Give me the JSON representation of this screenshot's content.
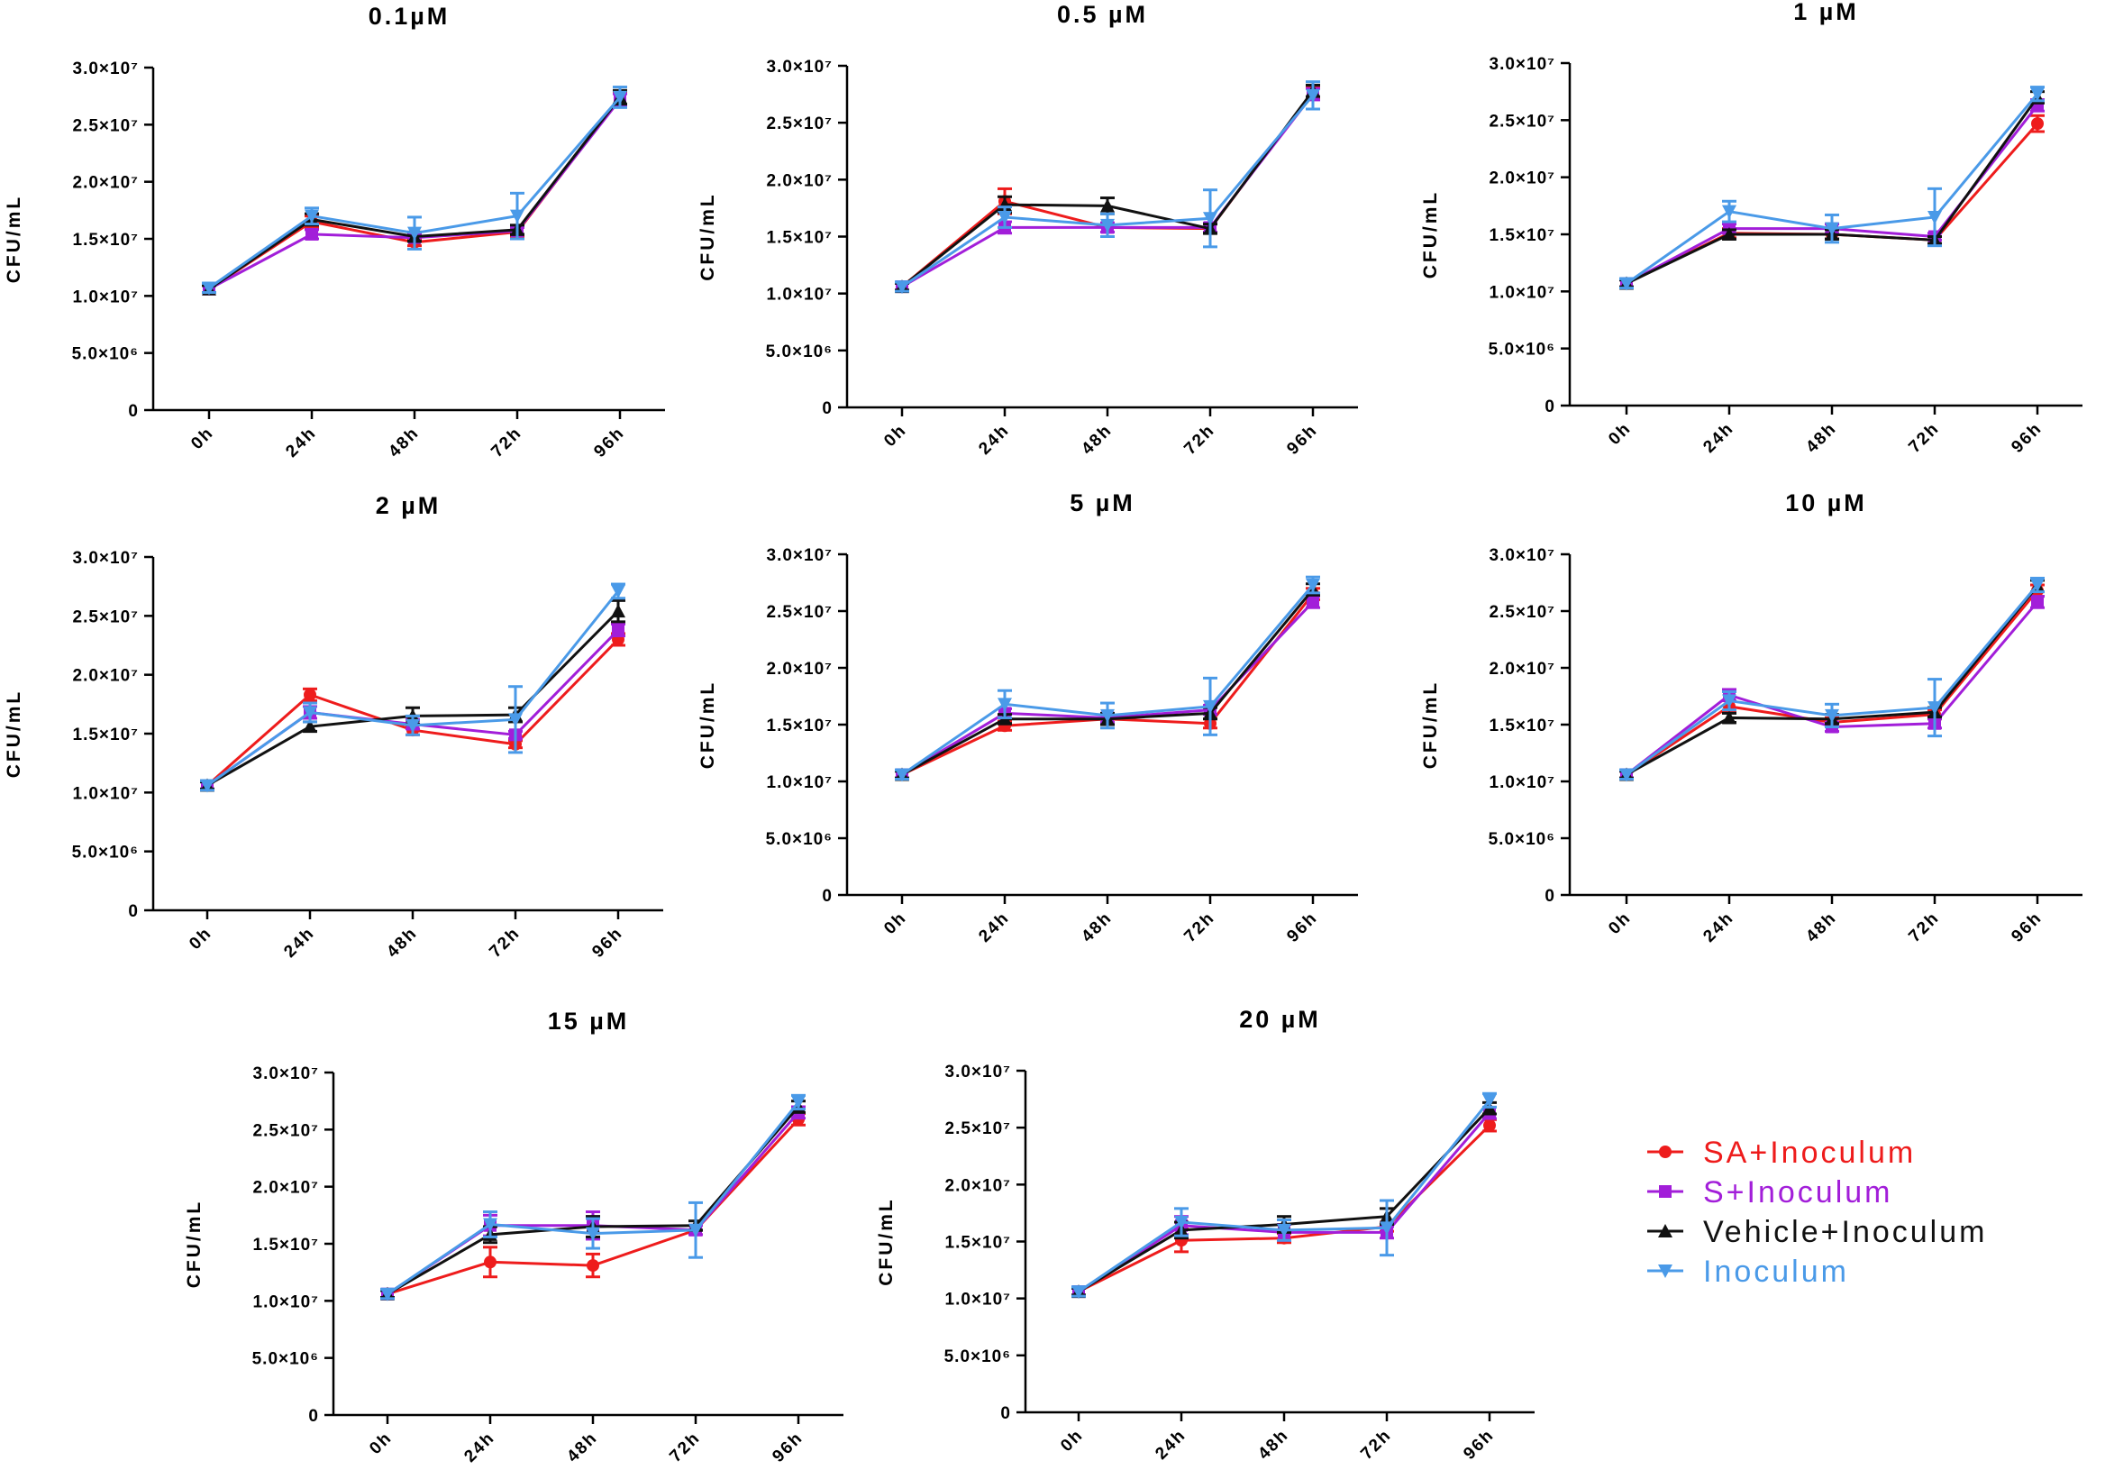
{
  "figure": {
    "legend": [
      {
        "label": "SA+Inoculum",
        "color": "#ee1c1c",
        "marker": "circle"
      },
      {
        "label": "S+Inoculum",
        "color": "#a21ed9",
        "marker": "square"
      },
      {
        "label": "Vehicle+Inoculum",
        "color": "#111111",
        "marker": "triangle-up"
      },
      {
        "label": "Inoculum",
        "color": "#4a9ae8",
        "marker": "triangle-down"
      }
    ]
  },
  "chart_data": [
    {
      "type": "line",
      "title": "0.1µM",
      "xlabel": "",
      "ylabel": "CFU/mL",
      "categories": [
        "0h",
        "24h",
        "48h",
        "72h",
        "96h"
      ],
      "ylim": [
        0,
        30000000
      ],
      "yticks": [
        {
          "value": 0,
          "label": "0"
        },
        {
          "value": 5000000,
          "label": "5.0×10⁶"
        },
        {
          "value": 10000000,
          "label": "1.0×10⁷"
        },
        {
          "value": 15000000,
          "label": "1.5×10⁷"
        },
        {
          "value": 20000000,
          "label": "2.0×10⁷"
        },
        {
          "value": 25000000,
          "label": "2.5×10⁷"
        },
        {
          "value": 30000000,
          "label": "3.0×10⁷"
        }
      ],
      "series": [
        {
          "name": "SA+Inoculum",
          "values": [
            10600000,
            16500000,
            14700000,
            15600000,
            27300000
          ],
          "errors": [
            300000,
            500000,
            300000,
            400000,
            600000
          ]
        },
        {
          "name": "S+Inoculum",
          "values": [
            10600000,
            15400000,
            15100000,
            15700000,
            27200000
          ],
          "errors": [
            300000,
            400000,
            300000,
            300000,
            500000
          ]
        },
        {
          "name": "Vehicle+Inoculum",
          "values": [
            10600000,
            16700000,
            15200000,
            15800000,
            27400000
          ],
          "errors": [
            300000,
            500000,
            400000,
            400000,
            600000
          ]
        },
        {
          "name": "Inoculum",
          "values": [
            10700000,
            17000000,
            15500000,
            17000000,
            27400000
          ],
          "errors": [
            400000,
            700000,
            1400000,
            2000000,
            900000
          ]
        }
      ]
    },
    {
      "type": "line",
      "title": "0.5 µM",
      "xlabel": "",
      "ylabel": "CFU/mL",
      "categories": [
        "0h",
        "24h",
        "48h",
        "72h",
        "96h"
      ],
      "ylim": [
        0,
        30000000
      ],
      "yticks": [
        {
          "value": 0,
          "label": "0"
        },
        {
          "value": 5000000,
          "label": "5.0×10⁶"
        },
        {
          "value": 10000000,
          "label": "1.0×10⁷"
        },
        {
          "value": 15000000,
          "label": "1.5×10⁷"
        },
        {
          "value": 20000000,
          "label": "2.0×10⁷"
        },
        {
          "value": 25000000,
          "label": "2.5×10⁷"
        },
        {
          "value": 30000000,
          "label": "3.0×10⁷"
        }
      ],
      "series": [
        {
          "name": "SA+Inoculum",
          "values": [
            10600000,
            18100000,
            15800000,
            15700000,
            27700000
          ],
          "errors": [
            300000,
            1100000,
            400000,
            400000,
            500000
          ]
        },
        {
          "name": "S+Inoculum",
          "values": [
            10600000,
            15800000,
            15800000,
            15800000,
            27500000
          ],
          "errors": [
            300000,
            500000,
            400000,
            400000,
            500000
          ]
        },
        {
          "name": "Vehicle+Inoculum",
          "values": [
            10600000,
            17800000,
            17700000,
            15700000,
            27800000
          ],
          "errors": [
            300000,
            700000,
            700000,
            400000,
            500000
          ]
        },
        {
          "name": "Inoculum",
          "values": [
            10600000,
            16700000,
            16000000,
            16600000,
            27400000
          ],
          "errors": [
            400000,
            900000,
            1000000,
            2500000,
            1200000
          ]
        }
      ]
    },
    {
      "type": "line",
      "title": "1 µM",
      "xlabel": "",
      "ylabel": "CFU/mL",
      "categories": [
        "0h",
        "24h",
        "48h",
        "72h",
        "96h"
      ],
      "ylim": [
        0,
        30000000
      ],
      "yticks": [
        {
          "value": 0,
          "label": "0"
        },
        {
          "value": 5000000,
          "label": "5.0×10⁶"
        },
        {
          "value": 10000000,
          "label": "1.0×10⁷"
        },
        {
          "value": 15000000,
          "label": "1.5×10⁷"
        },
        {
          "value": 20000000,
          "label": "2.0×10⁷"
        },
        {
          "value": 25000000,
          "label": "2.5×10⁷"
        },
        {
          "value": 30000000,
          "label": "3.0×10⁷"
        }
      ],
      "series": [
        {
          "name": "SA+Inoculum",
          "values": [
            10700000,
            15100000,
            15000000,
            14500000,
            24700000
          ],
          "errors": [
            300000,
            400000,
            400000,
            300000,
            700000
          ]
        },
        {
          "name": "S+Inoculum",
          "values": [
            10700000,
            15500000,
            15500000,
            14800000,
            26300000
          ],
          "errors": [
            300000,
            400000,
            400000,
            300000,
            500000
          ]
        },
        {
          "name": "Vehicle+Inoculum",
          "values": [
            10700000,
            15000000,
            15000000,
            14500000,
            27000000
          ],
          "errors": [
            300000,
            400000,
            400000,
            300000,
            500000
          ]
        },
        {
          "name": "Inoculum",
          "values": [
            10700000,
            17000000,
            15500000,
            16500000,
            27300000
          ],
          "errors": [
            400000,
            900000,
            1200000,
            2500000,
            600000
          ]
        }
      ]
    },
    {
      "type": "line",
      "title": "2 µM",
      "xlabel": "",
      "ylabel": "CFU/mL",
      "categories": [
        "0h",
        "24h",
        "48h",
        "72h",
        "96h"
      ],
      "ylim": [
        0,
        30000000
      ],
      "yticks": [
        {
          "value": 0,
          "label": "0"
        },
        {
          "value": 5000000,
          "label": "5.0×10⁶"
        },
        {
          "value": 10000000,
          "label": "1.0×10⁷"
        },
        {
          "value": 15000000,
          "label": "1.5×10⁷"
        },
        {
          "value": 20000000,
          "label": "2.0×10⁷"
        },
        {
          "value": 25000000,
          "label": "2.5×10⁷"
        },
        {
          "value": 30000000,
          "label": "3.0×10⁷"
        }
      ],
      "series": [
        {
          "name": "SA+Inoculum",
          "values": [
            10600000,
            18300000,
            15300000,
            14100000,
            23000000
          ],
          "errors": [
            300000,
            500000,
            400000,
            300000,
            500000
          ]
        },
        {
          "name": "S+Inoculum",
          "values": [
            10600000,
            16800000,
            15800000,
            14900000,
            23800000
          ],
          "errors": [
            300000,
            500000,
            400000,
            300000,
            500000
          ]
        },
        {
          "name": "Vehicle+Inoculum",
          "values": [
            10600000,
            15600000,
            16500000,
            16600000,
            25400000
          ],
          "errors": [
            300000,
            400000,
            700000,
            600000,
            900000
          ]
        },
        {
          "name": "Inoculum",
          "values": [
            10600000,
            16800000,
            15700000,
            16200000,
            27100000
          ],
          "errors": [
            400000,
            800000,
            800000,
            2800000,
            600000
          ]
        }
      ]
    },
    {
      "type": "line",
      "title": "5 µM",
      "xlabel": "",
      "ylabel": "CFU/mL",
      "categories": [
        "0h",
        "24h",
        "48h",
        "72h",
        "96h"
      ],
      "ylim": [
        0,
        30000000
      ],
      "yticks": [
        {
          "value": 0,
          "label": "0"
        },
        {
          "value": 5000000,
          "label": "5.0×10⁶"
        },
        {
          "value": 10000000,
          "label": "1.0×10⁷"
        },
        {
          "value": 15000000,
          "label": "1.5×10⁷"
        },
        {
          "value": 20000000,
          "label": "2.0×10⁷"
        },
        {
          "value": 25000000,
          "label": "2.5×10⁷"
        },
        {
          "value": 30000000,
          "label": "3.0×10⁷"
        }
      ],
      "series": [
        {
          "name": "SA+Inoculum",
          "values": [
            10600000,
            14900000,
            15500000,
            15100000,
            26500000
          ],
          "errors": [
            300000,
            400000,
            400000,
            400000,
            500000
          ]
        },
        {
          "name": "S+Inoculum",
          "values": [
            10600000,
            16000000,
            15600000,
            16300000,
            25800000
          ],
          "errors": [
            300000,
            400000,
            400000,
            400000,
            500000
          ]
        },
        {
          "name": "Vehicle+Inoculum",
          "values": [
            10600000,
            15500000,
            15500000,
            16000000,
            26900000
          ],
          "errors": [
            300000,
            400000,
            500000,
            500000,
            500000
          ]
        },
        {
          "name": "Inoculum",
          "values": [
            10600000,
            16800000,
            15800000,
            16600000,
            27300000
          ],
          "errors": [
            400000,
            1200000,
            1100000,
            2500000,
            700000
          ]
        }
      ]
    },
    {
      "type": "line",
      "title": "10 µM",
      "xlabel": "",
      "ylabel": "CFU/mL",
      "categories": [
        "0h",
        "24h",
        "48h",
        "72h",
        "96h"
      ],
      "ylim": [
        0,
        30000000
      ],
      "yticks": [
        {
          "value": 0,
          "label": "0"
        },
        {
          "value": 5000000,
          "label": "5.0×10⁶"
        },
        {
          "value": 10000000,
          "label": "1.0×10⁷"
        },
        {
          "value": 15000000,
          "label": "1.5×10⁷"
        },
        {
          "value": 20000000,
          "label": "2.0×10⁷"
        },
        {
          "value": 25000000,
          "label": "2.5×10⁷"
        },
        {
          "value": 30000000,
          "label": "3.0×10⁷"
        }
      ],
      "series": [
        {
          "name": "SA+Inoculum",
          "values": [
            10600000,
            16600000,
            15200000,
            15900000,
            26800000
          ],
          "errors": [
            300000,
            500000,
            400000,
            400000,
            500000
          ]
        },
        {
          "name": "S+Inoculum",
          "values": [
            10600000,
            17600000,
            14800000,
            15100000,
            25800000
          ],
          "errors": [
            300000,
            500000,
            400000,
            400000,
            500000
          ]
        },
        {
          "name": "Vehicle+Inoculum",
          "values": [
            10600000,
            15600000,
            15500000,
            16100000,
            27200000
          ],
          "errors": [
            300000,
            400000,
            400000,
            400000,
            500000
          ]
        },
        {
          "name": "Inoculum",
          "values": [
            10600000,
            17100000,
            15800000,
            16500000,
            27300000
          ],
          "errors": [
            400000,
            800000,
            1000000,
            2500000,
            600000
          ]
        }
      ]
    },
    {
      "type": "line",
      "title": "15 µM",
      "xlabel": "",
      "ylabel": "CFU/mL",
      "categories": [
        "0h",
        "24h",
        "48h",
        "72h",
        "96h"
      ],
      "ylim": [
        0,
        30000000
      ],
      "yticks": [
        {
          "value": 0,
          "label": "0"
        },
        {
          "value": 5000000,
          "label": "5.0×10⁶"
        },
        {
          "value": 10000000,
          "label": "1.0×10⁷"
        },
        {
          "value": 15000000,
          "label": "1.5×10⁷"
        },
        {
          "value": 20000000,
          "label": "2.0×10⁷"
        },
        {
          "value": 25000000,
          "label": "2.5×10⁷"
        },
        {
          "value": 30000000,
          "label": "3.0×10⁷"
        }
      ],
      "series": [
        {
          "name": "SA+Inoculum",
          "values": [
            10600000,
            13400000,
            13100000,
            16200000,
            25900000
          ],
          "errors": [
            300000,
            1300000,
            1000000,
            400000,
            500000
          ]
        },
        {
          "name": "S+Inoculum",
          "values": [
            10600000,
            16600000,
            16600000,
            16200000,
            26500000
          ],
          "errors": [
            300000,
            900000,
            1200000,
            400000,
            500000
          ]
        },
        {
          "name": "Vehicle+Inoculum",
          "values": [
            10600000,
            15800000,
            16500000,
            16600000,
            27000000
          ],
          "errors": [
            300000,
            700000,
            900000,
            400000,
            500000
          ]
        },
        {
          "name": "Inoculum",
          "values": [
            10600000,
            16700000,
            15900000,
            16200000,
            27400000
          ],
          "errors": [
            400000,
            1100000,
            1300000,
            2400000,
            600000
          ]
        }
      ]
    },
    {
      "type": "line",
      "title": "20 µM",
      "xlabel": "",
      "ylabel": "CFU/mL",
      "categories": [
        "0h",
        "24h",
        "48h",
        "72h",
        "96h"
      ],
      "ylim": [
        0,
        30000000
      ],
      "yticks": [
        {
          "value": 0,
          "label": "0"
        },
        {
          "value": 5000000,
          "label": "5.0×10⁶"
        },
        {
          "value": 10000000,
          "label": "1.0×10⁷"
        },
        {
          "value": 15000000,
          "label": "1.5×10⁷"
        },
        {
          "value": 20000000,
          "label": "2.0×10⁷"
        },
        {
          "value": 25000000,
          "label": "2.5×10⁷"
        },
        {
          "value": 30000000,
          "label": "3.0×10⁷"
        }
      ],
      "series": [
        {
          "name": "SA+Inoculum",
          "values": [
            10600000,
            15100000,
            15300000,
            16300000,
            25200000
          ],
          "errors": [
            300000,
            1000000,
            400000,
            400000,
            500000
          ]
        },
        {
          "name": "S+Inoculum",
          "values": [
            10600000,
            16400000,
            15800000,
            15800000,
            26300000
          ],
          "errors": [
            300000,
            800000,
            700000,
            500000,
            500000
          ]
        },
        {
          "name": "Vehicle+Inoculum",
          "values": [
            10600000,
            16000000,
            16500000,
            17200000,
            26700000
          ],
          "errors": [
            300000,
            700000,
            700000,
            700000,
            500000
          ]
        },
        {
          "name": "Inoculum",
          "values": [
            10600000,
            16700000,
            16000000,
            16200000,
            27400000
          ],
          "errors": [
            400000,
            1200000,
            900000,
            2400000,
            600000
          ]
        }
      ]
    }
  ]
}
